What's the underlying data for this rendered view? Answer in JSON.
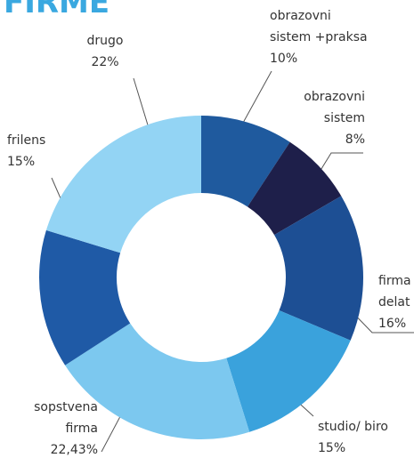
{
  "chart_data": {
    "type": "donut",
    "title": "FIRME",
    "categories": [
      [
        "obrazovni",
        "sistem +praksa"
      ],
      [
        "obrazovni",
        "sistem"
      ],
      [
        "firma",
        "delat"
      ],
      [
        "studio/ biro"
      ],
      [
        "sopstvena",
        "firma"
      ],
      [
        "frilens"
      ],
      [
        "drugo"
      ]
    ],
    "values": [
      10,
      8,
      16,
      15,
      22.43,
      15,
      22
    ],
    "value_labels": [
      "10%",
      "8%",
      "16%",
      "15%",
      "22,43%",
      "15%",
      "22%"
    ],
    "colors": [
      "#1f5a9e",
      "#1e1f4a",
      "#1d4f94",
      "#3aa2dc",
      "#7cc8ef",
      "#1f5aa6",
      "#93d4f4"
    ]
  }
}
